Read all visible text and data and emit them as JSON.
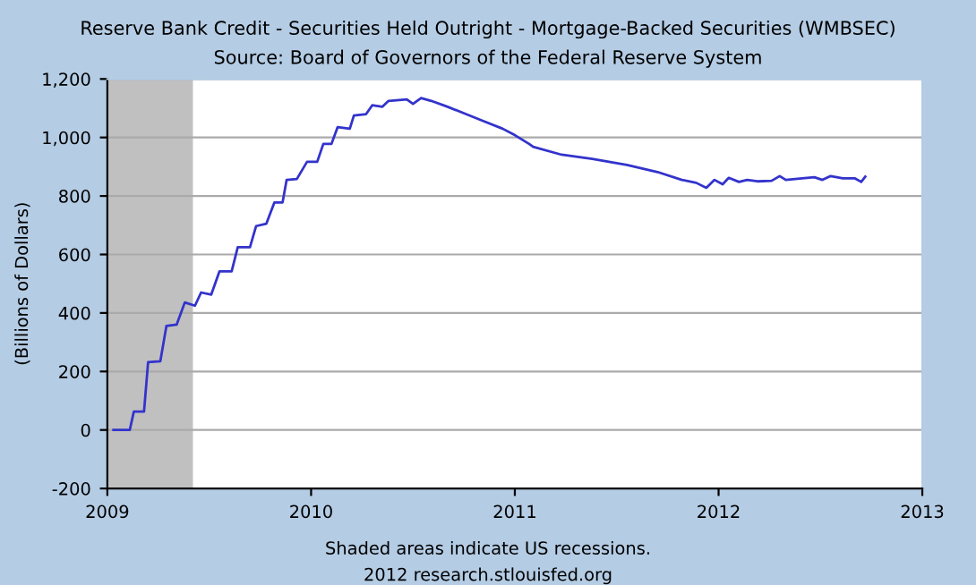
{
  "chart_data": {
    "type": "line",
    "title": "Reserve Bank Credit - Securities Held Outright - Mortgage-Backed Securities (WMBSEC)",
    "subtitle": "Source: Board of Governors of the Federal Reserve System",
    "ylabel": "(Billions of Dollars)",
    "annotations": [
      "Shaded areas indicate US recessions.",
      "2012 research.stlouisfed.org"
    ],
    "xlim": [
      2009,
      2013
    ],
    "xticks": [
      2009,
      2010,
      2011,
      2012,
      2013
    ],
    "ylim": [
      -200,
      1200
    ],
    "yticks": [
      {
        "value": -200,
        "label": "-200"
      },
      {
        "value": 0,
        "label": "0"
      },
      {
        "value": 200,
        "label": "200"
      },
      {
        "value": 400,
        "label": "400"
      },
      {
        "value": 600,
        "label": "600"
      },
      {
        "value": 800,
        "label": "800"
      },
      {
        "value": 1000,
        "label": "1,000"
      },
      {
        "value": 1200,
        "label": "1,200"
      }
    ],
    "grid": "y",
    "line_style": "solid",
    "marker": "none",
    "bands": [
      {
        "axis": "x",
        "from": 2009,
        "to": 2009.42,
        "color": "#c0c0c0"
      }
    ],
    "series": [
      {
        "color": "#3333cc",
        "x": [
          2009.03,
          2009.11,
          2009.13,
          2009.18,
          2009.2,
          2009.26,
          2009.29,
          2009.34,
          2009.38,
          2009.43,
          2009.46,
          2009.51,
          2009.55,
          2009.61,
          2009.64,
          2009.7,
          2009.73,
          2009.78,
          2009.82,
          2009.86,
          2009.88,
          2009.93,
          2009.98,
          2010.03,
          2010.06,
          2010.1,
          2010.13,
          2010.19,
          2010.21,
          2010.27,
          2010.3,
          2010.35,
          2010.38,
          2010.47,
          2010.5,
          2010.54,
          2010.59,
          2010.67,
          2010.76,
          2010.85,
          2010.94,
          2011.0,
          2011.07,
          2011.09,
          2011.23,
          2011.38,
          2011.55,
          2011.7,
          2011.82,
          2011.89,
          2011.94,
          2011.98,
          2012.02,
          2012.05,
          2012.1,
          2012.14,
          2012.19,
          2012.26,
          2012.3,
          2012.33,
          2012.41,
          2012.47,
          2012.51,
          2012.55,
          2012.61,
          2012.67,
          2012.7,
          2012.72
        ],
        "values": [
          0,
          0,
          63,
          63,
          232,
          235,
          356,
          360,
          436,
          425,
          470,
          463,
          542,
          542,
          625,
          625,
          697,
          705,
          778,
          778,
          855,
          858,
          917,
          917,
          978,
          978,
          1035,
          1030,
          1075,
          1080,
          1110,
          1105,
          1125,
          1130,
          1115,
          1135,
          1125,
          1105,
          1080,
          1055,
          1030,
          1008,
          978,
          968,
          941,
          927,
          906,
          882,
          855,
          845,
          828,
          855,
          840,
          862,
          848,
          855,
          850,
          852,
          868,
          855,
          860,
          864,
          855,
          868,
          860,
          860,
          848,
          866
        ]
      }
    ]
  }
}
